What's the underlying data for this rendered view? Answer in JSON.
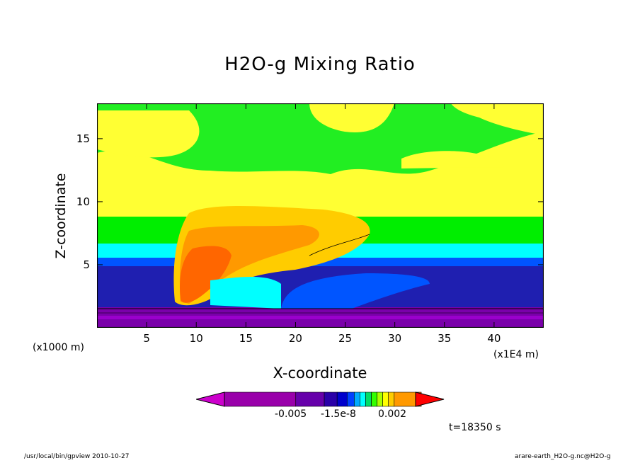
{
  "chart_data": {
    "type": "heatmap",
    "title": "H2O-g Mixing Ratio",
    "xlabel": "X-coordinate",
    "ylabel": "Z-coordinate",
    "x_unit": "(x1E4 m)",
    "y_unit": "(x1000 m)",
    "xlim": [
      0,
      45
    ],
    "ylim": [
      0,
      17.8
    ],
    "x_ticks": [
      5,
      10,
      15,
      20,
      25,
      30,
      35,
      40
    ],
    "x_tick_labels": [
      "5",
      "10",
      "15",
      "20",
      "25",
      "30",
      "35",
      "40"
    ],
    "y_ticks": [
      5,
      10,
      15
    ],
    "y_tick_labels": [
      "5",
      "10",
      "15"
    ],
    "time_label": "t=18350 s",
    "colorbar": {
      "tick_labels": [
        "-0.005",
        "-1.5e-8",
        "0.002"
      ],
      "colors": [
        "#cc00cc",
        "#9900aa",
        "#6600aa",
        "#2a00a8",
        "#0000cc",
        "#0040ff",
        "#00aaff",
        "#00ffff",
        "#00dd66",
        "#33ff00",
        "#aaff00",
        "#ffff00",
        "#ffcc00",
        "#ff9900",
        "#ff6600",
        "#ff0000"
      ]
    },
    "layers": [
      {
        "name": "surface",
        "color": "#7a00aa",
        "z_range": [
          0,
          1.8
        ]
      },
      {
        "name": "lower",
        "color": "#1f1fb0",
        "z_range": [
          1.8,
          4.8
        ]
      },
      {
        "name": "mid-blue",
        "color": "#0055ff",
        "z_range": [
          4.8,
          5.6
        ]
      },
      {
        "name": "cyan",
        "color": "#00ffff",
        "z_range": [
          5.6,
          6.8
        ]
      },
      {
        "name": "green",
        "color": "#00ee00",
        "z_range": [
          6.8,
          8.8
        ]
      },
      {
        "name": "upper",
        "color": "#ffff33",
        "z_range": [
          8.8,
          12.5
        ]
      },
      {
        "name": "top",
        "color": "#22ee22",
        "z_range": [
          12.5,
          17.8
        ]
      }
    ],
    "grid": false
  },
  "footer": {
    "left": "/usr/local/bin/gpview  2010-10-27",
    "right": "arare-earth_H2O-g.nc@H2O-g"
  }
}
